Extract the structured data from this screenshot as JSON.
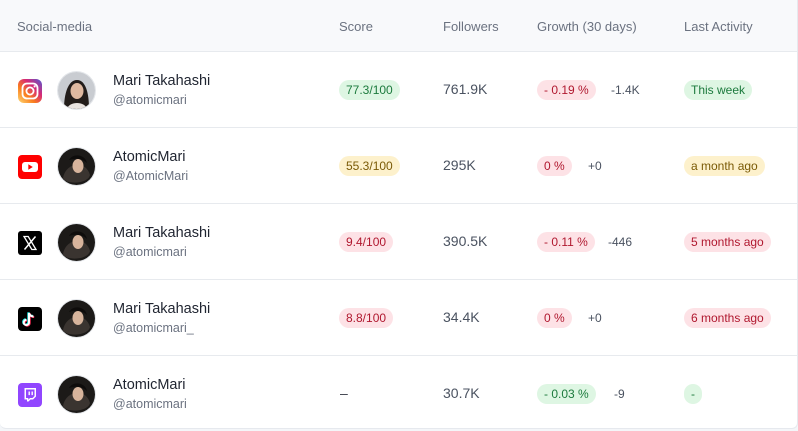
{
  "columns": {
    "social_media": "Social-media",
    "score": "Score",
    "followers": "Followers",
    "growth": "Growth (30 days)",
    "last_activity": "Last Activity"
  },
  "rows": [
    {
      "platform": "instagram-icon",
      "name": "Mari Takahashi",
      "handle": "@atomicmari",
      "score": "77.3/100",
      "score_tone": "good",
      "followers": "761.9K",
      "growth": "- 0.19 %",
      "growth_tone": "negative",
      "delta": "-1.4K",
      "activity": "This week",
      "activity_tone": "good"
    },
    {
      "platform": "youtube-icon",
      "name": "AtomicMari",
      "handle": "@AtomicMari",
      "score": "55.3/100",
      "score_tone": "warn",
      "followers": "295K",
      "growth": "0 %",
      "growth_tone": "negative",
      "delta": "+0",
      "activity": "a month ago",
      "activity_tone": "warn"
    },
    {
      "platform": "x-icon",
      "name": "Mari Takahashi",
      "handle": "@atomicmari",
      "score": "9.4/100",
      "score_tone": "bad",
      "followers": "390.5K",
      "growth": "- 0.11 %",
      "growth_tone": "negative",
      "delta": "-446",
      "activity": "5 months ago",
      "activity_tone": "bad"
    },
    {
      "platform": "tiktok-icon",
      "name": "Mari Takahashi",
      "handle": "@atomicmari_",
      "score": "8.8/100",
      "score_tone": "bad",
      "followers": "34.4K",
      "growth": "0 %",
      "growth_tone": "negative",
      "delta": "+0",
      "activity": "6 months ago",
      "activity_tone": "bad"
    },
    {
      "platform": "twitch-icon",
      "name": "AtomicMari",
      "handle": "@atomicmari",
      "score": "–",
      "score_tone": "none",
      "followers": "30.7K",
      "growth": "- 0.03 %",
      "growth_tone": "good",
      "delta": "-9",
      "activity": "-",
      "activity_tone": "good"
    }
  ],
  "colors": {
    "instagram": "#d6249f",
    "youtube": "#ff0000",
    "x": "#000000",
    "tiktok": "#000000",
    "twitch": "#9146ff"
  }
}
